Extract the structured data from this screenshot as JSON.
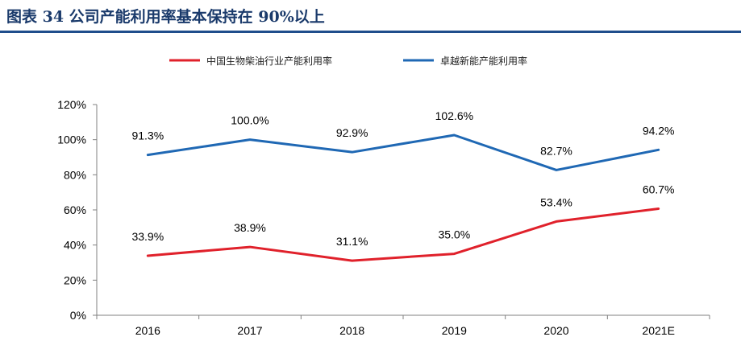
{
  "header": {
    "title": "图表 34   公司产能利用率基本保持在 90%以上"
  },
  "colors": {
    "accent": "#1f4e8c",
    "industry": "#e0212b",
    "company": "#1f68b4"
  },
  "chart_data": {
    "type": "line",
    "title": "",
    "xlabel": "",
    "ylabel": "",
    "categories": [
      "2016",
      "2017",
      "2018",
      "2019",
      "2020",
      "2021E"
    ],
    "ylim": [
      0,
      120
    ],
    "yticks": [
      "0%",
      "20%",
      "40%",
      "60%",
      "80%",
      "100%",
      "120%"
    ],
    "grid": false,
    "legend_position": "top",
    "series": [
      {
        "name": "中国生物柴油行业产能利用率",
        "values": [
          33.9,
          38.9,
          31.1,
          35.0,
          53.4,
          60.7
        ],
        "labels": [
          "33.9%",
          "38.9%",
          "31.1%",
          "35.0%",
          "53.4%",
          "60.7%"
        ],
        "color": "#e0212b"
      },
      {
        "name": "卓越新能产能利用率",
        "values": [
          91.3,
          100.0,
          92.9,
          102.6,
          82.7,
          94.2
        ],
        "labels": [
          "91.3%",
          "100.0%",
          "92.9%",
          "102.6%",
          "82.7%",
          "94.2%"
        ],
        "color": "#1f68b4"
      }
    ]
  }
}
